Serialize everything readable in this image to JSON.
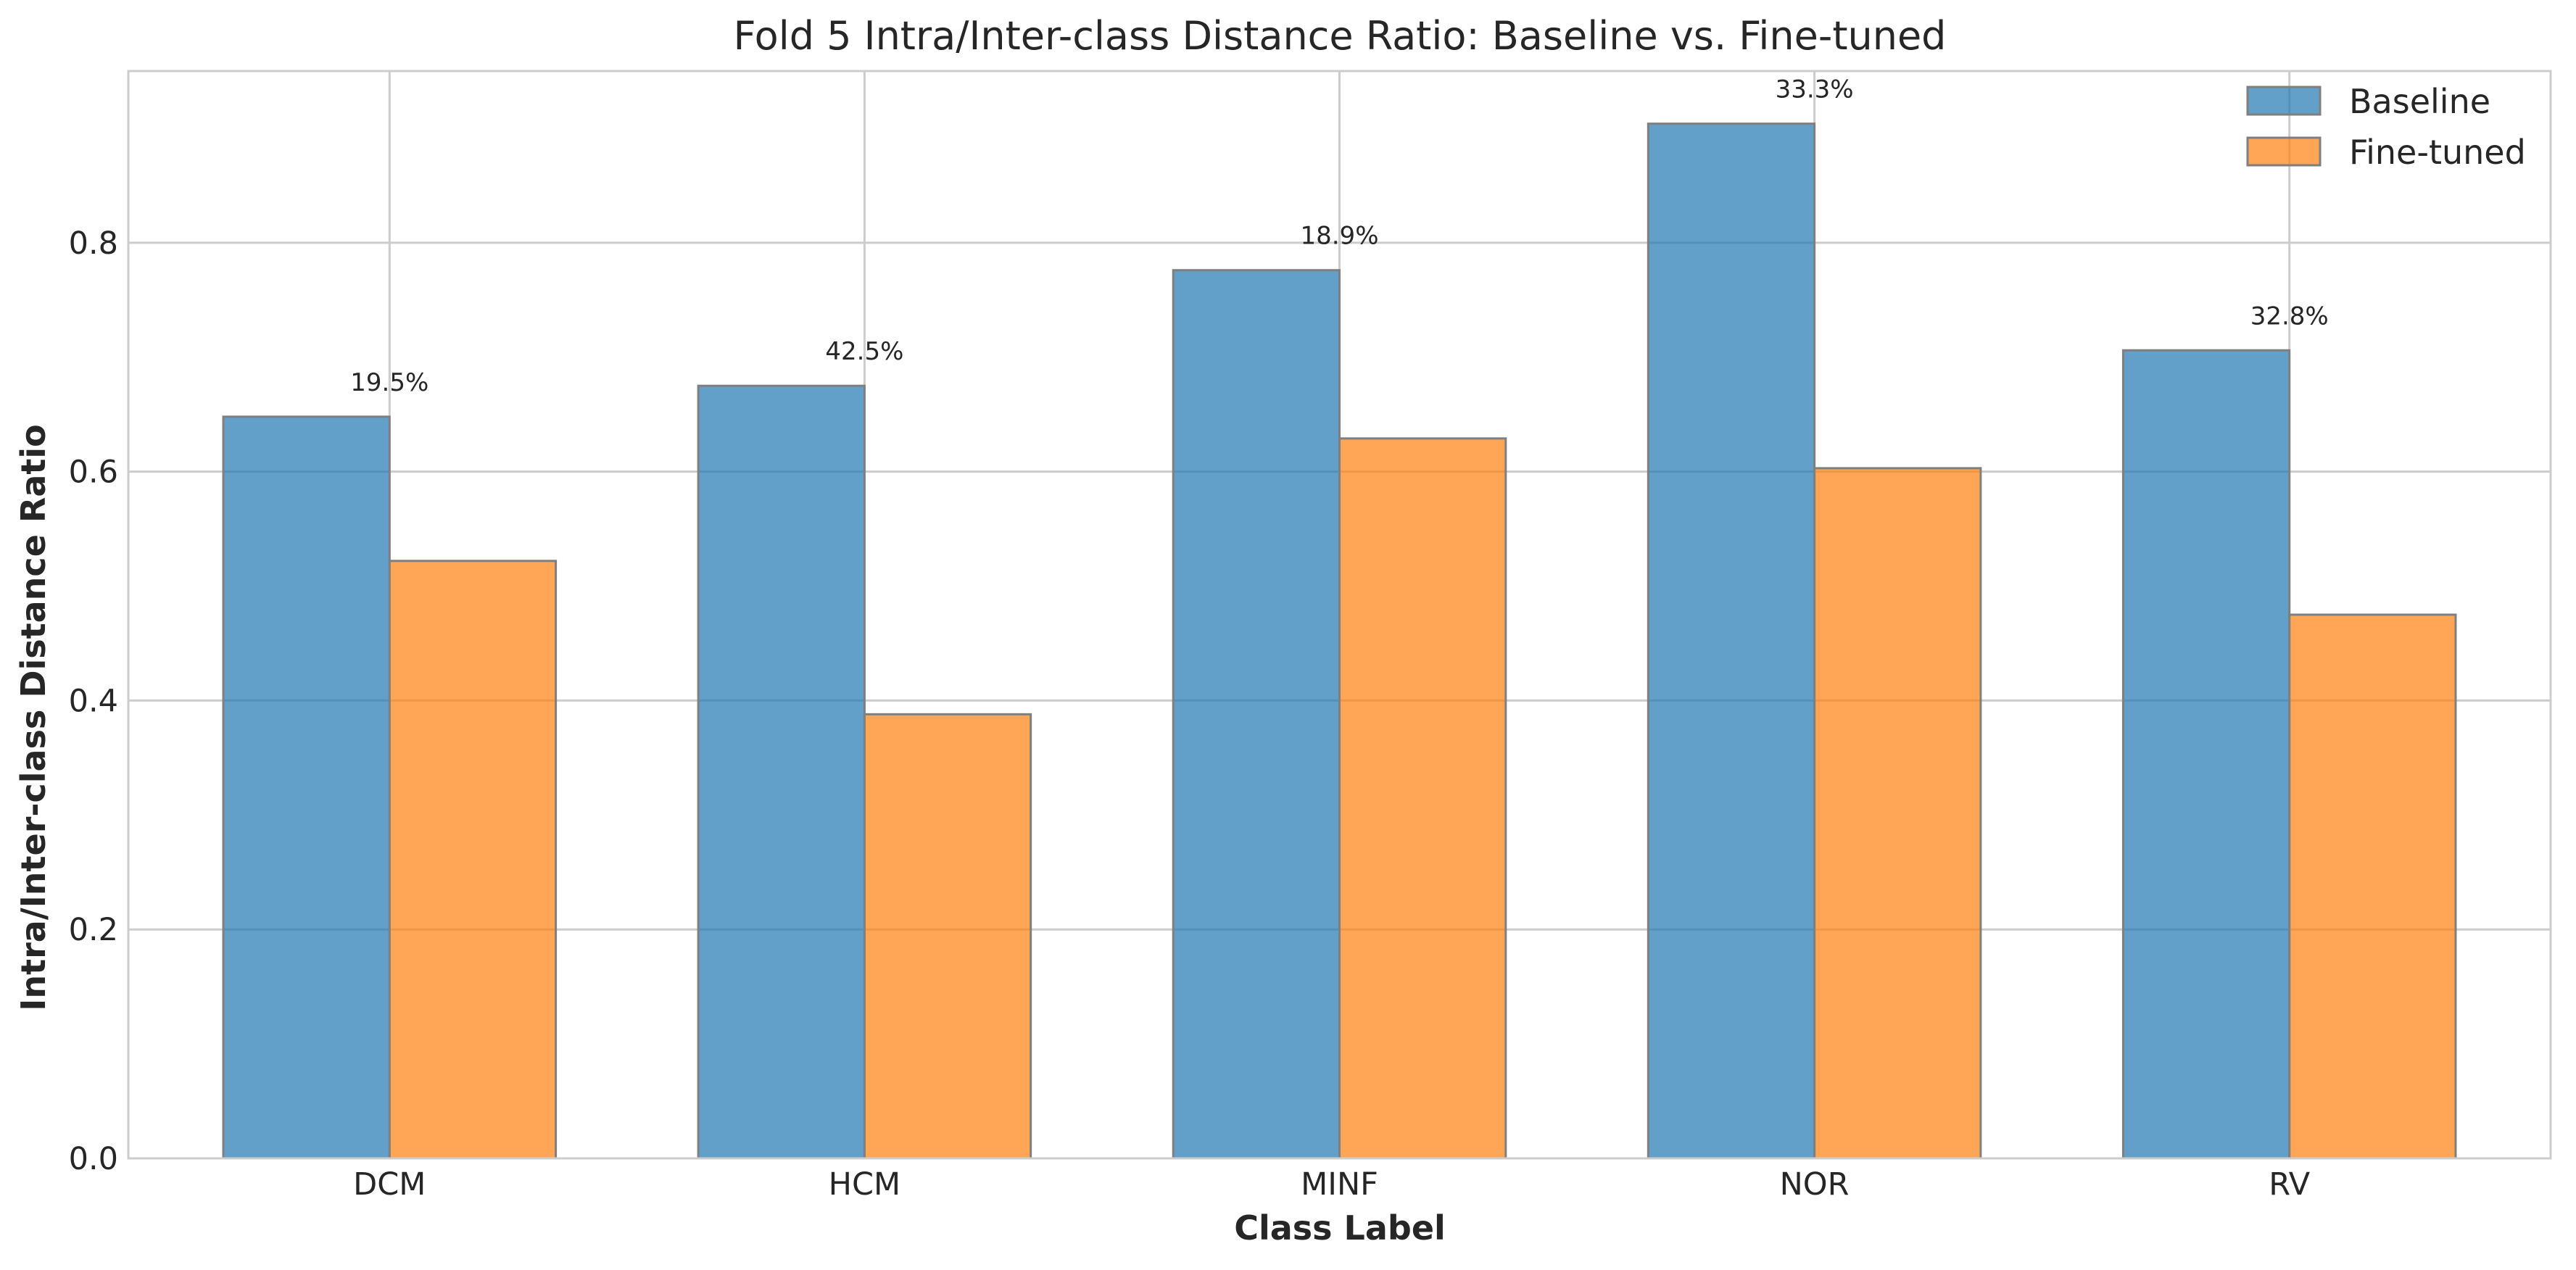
{
  "chart_data": {
    "type": "bar",
    "title": "Fold 5 Intra/Inter-class Distance Ratio: Baseline vs. Fine-tuned",
    "xlabel": "Class Label",
    "ylabel": "Intra/Inter-class Distance Ratio",
    "categories": [
      "DCM",
      "HCM",
      "MINF",
      "NOR",
      "RV"
    ],
    "series": [
      {
        "name": "Baseline",
        "color": "#1f77b4",
        "values": [
          0.648,
          0.675,
          0.776,
          0.904,
          0.706
        ]
      },
      {
        "name": "Fine-tuned",
        "color": "#ff7f0e",
        "values": [
          0.522,
          0.388,
          0.629,
          0.603,
          0.475
        ]
      }
    ],
    "annotations": [
      "19.5%",
      "42.5%",
      "18.9%",
      "33.3%",
      "32.8%"
    ],
    "ylim": [
      0,
      0.95
    ],
    "yticks": [
      0.0,
      0.2,
      0.4,
      0.6,
      0.8
    ],
    "ytick_labels": [
      "0.0",
      "0.2",
      "0.4",
      "0.6",
      "0.8"
    ],
    "grid": true,
    "legend_position": "top-right"
  }
}
